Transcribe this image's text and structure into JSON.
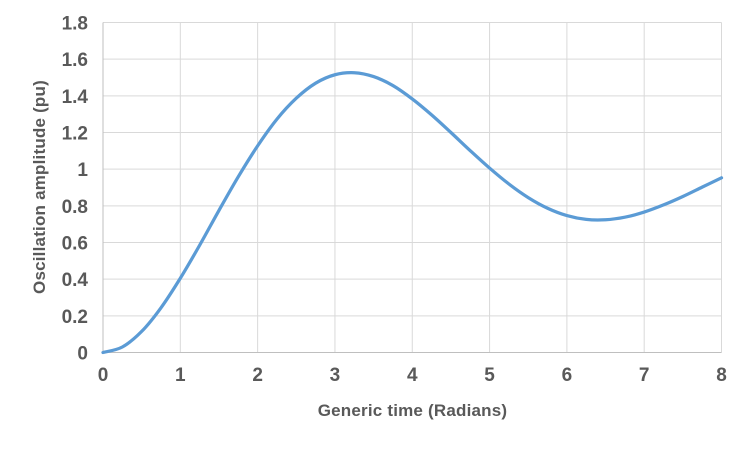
{
  "chart": {
    "x_axis_title": "Generic time (Radians)",
    "y_axis_title": "Oscillation amplitude (pu)",
    "x_tick_labels": [
      "0",
      "1",
      "2",
      "3",
      "4",
      "5",
      "6",
      "7",
      "8"
    ],
    "y_tick_labels": [
      "0",
      "0.2",
      "0.4",
      "0.6",
      "0.8",
      "1",
      "1.2",
      "1.4",
      "1.6",
      "1.8"
    ],
    "colors": {
      "line": "#5B9BD5",
      "grid": "#D9D9D9",
      "axis": "#BFBFBF",
      "text": "#595959",
      "background": "#FFFFFF"
    }
  },
  "chart_data": {
    "type": "line",
    "title": "",
    "xlabel": "Generic time (Radians)",
    "ylabel": "Oscillation amplitude (pu)",
    "xlim": [
      0,
      8
    ],
    "ylim": [
      0,
      1.8
    ],
    "x_ticks": [
      0,
      1,
      2,
      3,
      4,
      5,
      6,
      7,
      8
    ],
    "y_ticks": [
      0,
      0.2,
      0.4,
      0.6,
      0.8,
      1,
      1.2,
      1.4,
      1.6,
      1.8
    ],
    "grid": true,
    "legend": false,
    "series": [
      {
        "name": "series-1",
        "color": "#5B9BD5",
        "x": [
          0,
          0.25,
          0.5,
          0.75,
          1,
          1.25,
          1.5,
          1.75,
          2,
          2.25,
          2.5,
          2.75,
          3,
          3.25,
          3.5,
          3.75,
          4,
          4.25,
          4.5,
          4.75,
          5,
          5.25,
          5.5,
          5.75,
          6,
          6.25,
          6.5,
          6.75,
          7,
          7.25,
          7.5,
          7.75,
          8
        ],
        "y": [
          0,
          0.03,
          0.115,
          0.244,
          0.405,
          0.585,
          0.775,
          0.959,
          1.127,
          1.273,
          1.387,
          1.469,
          1.515,
          1.526,
          1.505,
          1.456,
          1.383,
          1.296,
          1.2,
          1.101,
          1.006,
          0.919,
          0.845,
          0.787,
          0.747,
          0.726,
          0.724,
          0.738,
          0.766,
          0.805,
          0.851,
          0.902,
          0.953
        ]
      }
    ]
  }
}
